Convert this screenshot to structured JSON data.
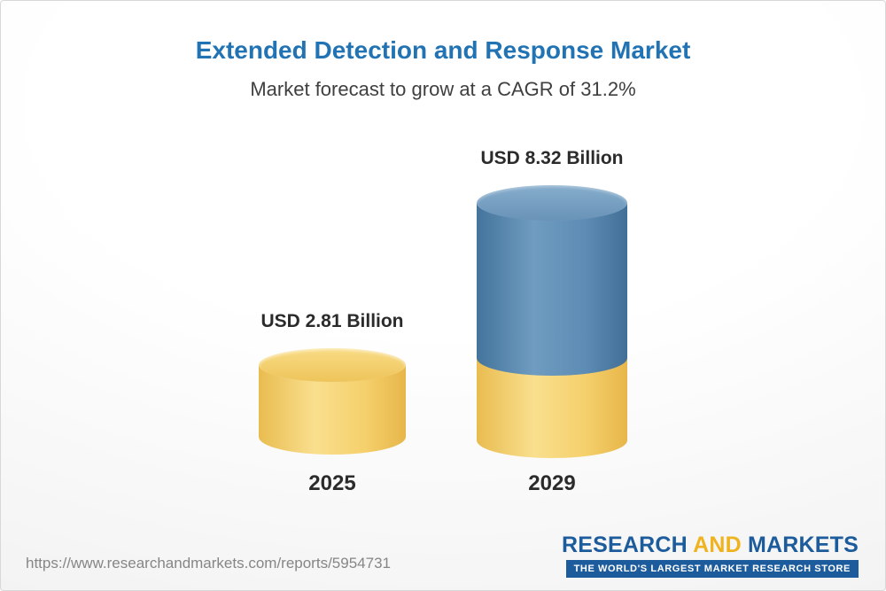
{
  "header": {
    "title": "Extended Detection and Response Market",
    "subtitle": "Market forecast to grow at a CAGR of 31.2%"
  },
  "chart_data": {
    "type": "bar",
    "title": "Extended Detection and Response Market",
    "subtitle": "Market forecast to grow at a CAGR of 31.2%",
    "cagr_percent": 31.2,
    "unit": "USD Billion",
    "categories": [
      "2025",
      "2029"
    ],
    "values": [
      2.81,
      8.32
    ],
    "value_labels": [
      "USD 2.81 Billion",
      "USD 8.32 Billion"
    ],
    "ylim": [
      0,
      9
    ],
    "grid": false,
    "legend": "none",
    "style": "3d-cylinder",
    "notes": "2029 cylinder is stacked: gold base segment equal to 2025 value, blue segment for growth",
    "colors": {
      "base_gold": "#f5d06c",
      "growth_blue": "#5d8cb4",
      "title_blue": "#2173b4"
    }
  },
  "footer": {
    "url": "https://www.researchandmarkets.com/reports/5954731",
    "logo": {
      "research": "RESEARCH",
      "and": "AND",
      "markets": "MARKETS",
      "tagline": "THE WORLD'S LARGEST MARKET RESEARCH STORE",
      "brand_blue": "#1d5c9c",
      "brand_gold": "#efb320"
    }
  }
}
